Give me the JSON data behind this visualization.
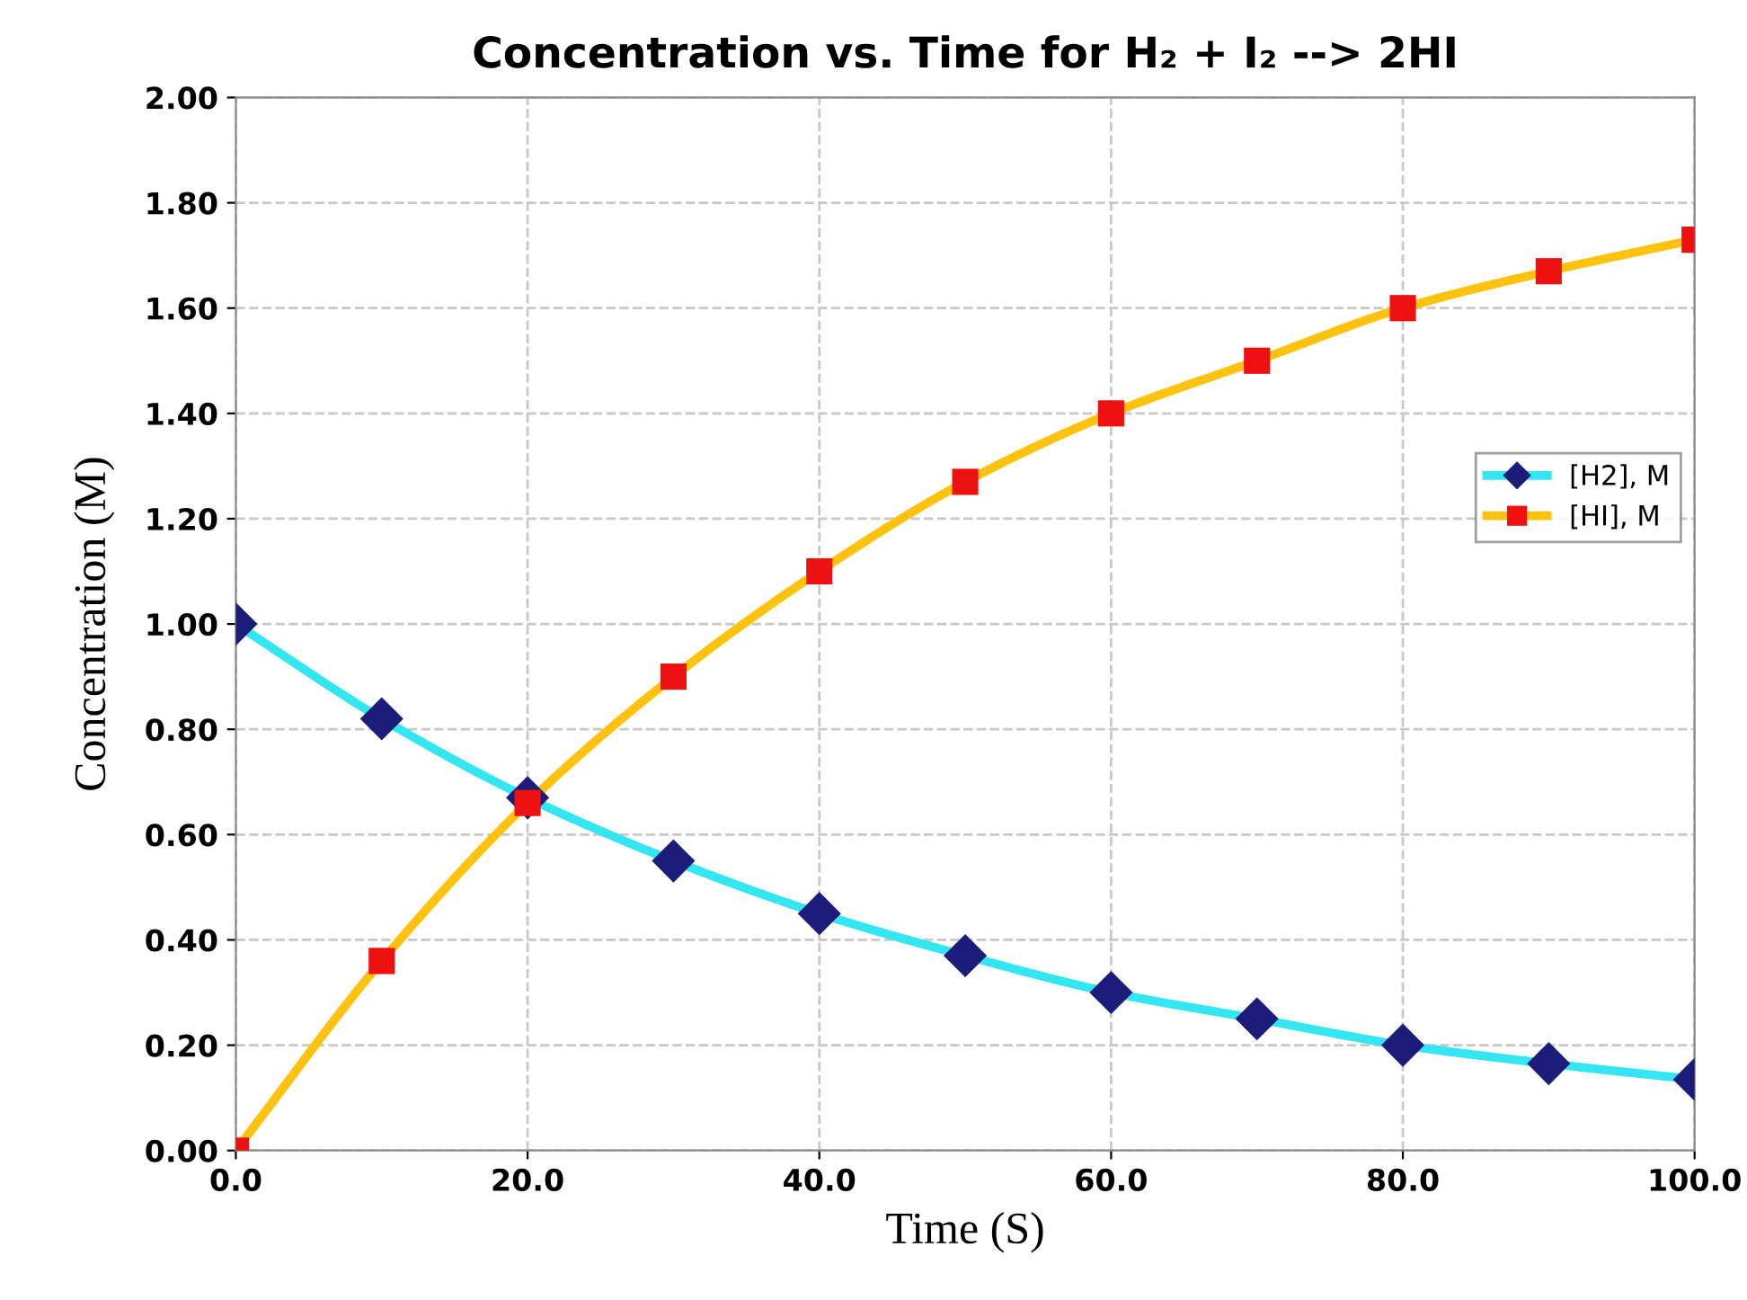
{
  "chart_data": {
    "type": "line",
    "title": "Concentration vs. Time for H₂ + I₂ --> 2HI",
    "xlabel": "Time (S)",
    "ylabel": "Concentration (M)",
    "x": [
      0,
      10,
      20,
      30,
      40,
      50,
      60,
      70,
      80,
      90,
      100
    ],
    "series": [
      {
        "name": "[H2], M",
        "color": "#33e6f2",
        "marker": "diamond",
        "colors": [
          "#1c1c7a",
          "#1c1c7a",
          "#1c1c7a",
          "#1c1c7a",
          "#1c1c7a",
          "#1c1c7a",
          "#1c1c7a",
          "#1c1c7a",
          "#1c1c7a",
          "#1c1c7a",
          "#1c1c7a"
        ],
        "values": [
          1.0,
          0.82,
          0.67,
          0.55,
          0.45,
          0.37,
          0.3,
          0.25,
          0.2,
          0.165,
          0.135
        ]
      },
      {
        "name": "[HI], M",
        "color": "#ffc20e",
        "marker": "square",
        "colors": [
          "#ee1111",
          "#ee1111",
          "#ee1111",
          "#ee1111",
          "#ee1111",
          "#ee1111",
          "#ee1111",
          "#ee1111",
          "#ee1111",
          "#ee1111",
          "#ee1111"
        ],
        "values": [
          0.0,
          0.36,
          0.66,
          0.9,
          1.1,
          1.27,
          1.4,
          1.5,
          1.6,
          1.67,
          1.73
        ]
      }
    ],
    "xlim": [
      0,
      100
    ],
    "ylim": [
      0,
      2
    ],
    "xticks": [
      {
        "value": 0,
        "label": "0.0"
      },
      {
        "value": 20,
        "label": "20.0"
      },
      {
        "value": 40,
        "label": "40.0"
      },
      {
        "value": 60,
        "label": "60.0"
      },
      {
        "value": 80,
        "label": "80.0"
      },
      {
        "value": 100,
        "label": "100.0"
      }
    ],
    "yticks": [
      {
        "value": 0,
        "label": "0.00"
      },
      {
        "value": 0.2,
        "label": "0.20"
      },
      {
        "value": 0.4,
        "label": "0.40"
      },
      {
        "value": 0.6,
        "label": "0.60"
      },
      {
        "value": 0.8,
        "label": "0.80"
      },
      {
        "value": 1.0,
        "label": "1.00"
      },
      {
        "value": 1.2,
        "label": "1.20"
      },
      {
        "value": 1.4,
        "label": "1.40"
      },
      {
        "value": 1.6,
        "label": "1.60"
      },
      {
        "value": 1.8,
        "label": "1.80"
      },
      {
        "value": 2.0,
        "label": "2.00"
      }
    ],
    "grid": true,
    "legend": "right",
    "line_style": "solid"
  }
}
